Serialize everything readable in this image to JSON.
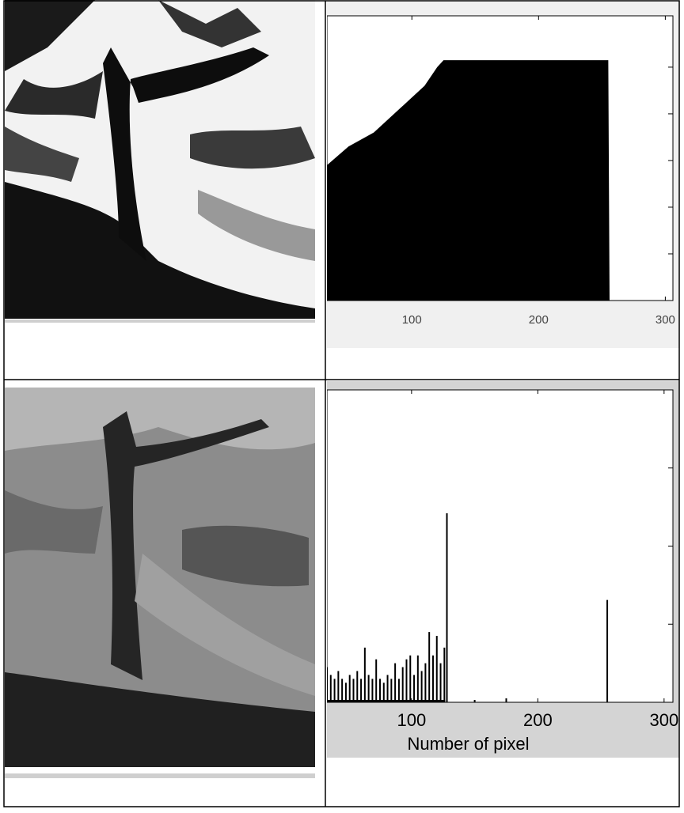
{
  "chart_data": [
    {
      "type": "area",
      "color": "#000000",
      "x": [
        33,
        50,
        70,
        90,
        110,
        120,
        125,
        255,
        256,
        306
      ],
      "values": [
        2.9,
        3.3,
        3.6,
        4.1,
        4.6,
        5.0,
        5.15,
        5.15,
        0,
        0
      ],
      "xlim": [
        33,
        306
      ],
      "ylim": [
        0,
        6.1
      ],
      "xticks": [
        100,
        200,
        300
      ],
      "yticks": [
        1,
        2,
        3,
        4,
        5
      ]
    },
    {
      "type": "bar",
      "color": "#000000",
      "xlabel": "Number of pixel",
      "x": [
        33,
        36,
        39,
        42,
        45,
        48,
        51,
        54,
        57,
        60,
        63,
        66,
        69,
        72,
        75,
        78,
        81,
        84,
        87,
        90,
        93,
        96,
        99,
        102,
        105,
        108,
        111,
        114,
        117,
        120,
        123,
        126,
        128,
        150,
        175,
        255
      ],
      "values": [
        0.45,
        0.35,
        0.3,
        0.4,
        0.3,
        0.25,
        0.35,
        0.3,
        0.4,
        0.3,
        0.7,
        0.35,
        0.3,
        0.55,
        0.3,
        0.25,
        0.35,
        0.3,
        0.5,
        0.3,
        0.45,
        0.55,
        0.6,
        0.35,
        0.6,
        0.4,
        0.5,
        0.9,
        0.6,
        0.85,
        0.5,
        0.7,
        2.42,
        0.03,
        0.05,
        1.31
      ],
      "xlim": [
        33,
        307
      ],
      "ylim": [
        0,
        4
      ],
      "xticks": [
        100,
        200,
        300
      ],
      "yticks": [
        1,
        2,
        3
      ]
    }
  ]
}
